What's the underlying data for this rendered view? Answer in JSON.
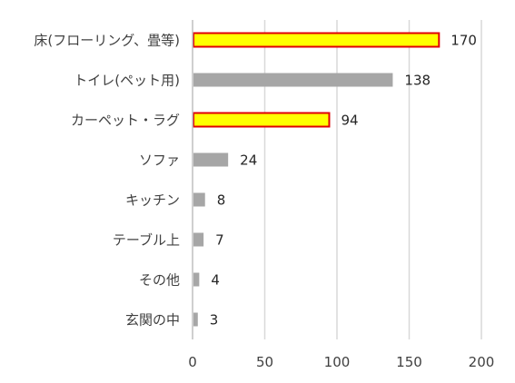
{
  "chart_data": {
    "type": "bar",
    "orientation": "horizontal",
    "categories": [
      "床(フローリング、畳等)",
      "トイレ(ペット用)",
      "カーペット・ラグ",
      "ソファ",
      "キッチン",
      "テーブル上",
      "その他",
      "玄関の中"
    ],
    "values": [
      170,
      138,
      94,
      24,
      8,
      7,
      4,
      3
    ],
    "highlighted": [
      true,
      false,
      true,
      false,
      false,
      false,
      false,
      false
    ],
    "xlim": [
      0,
      200
    ],
    "xticks": [
      0,
      50,
      100,
      150,
      200
    ],
    "grid": "vertical",
    "colors": {
      "bar": "#a6a6a6",
      "highlight_fill": "#ffff00",
      "highlight_border": "#e00000",
      "grid": "#d9d9d9",
      "axis": "#bfbfbf"
    }
  }
}
